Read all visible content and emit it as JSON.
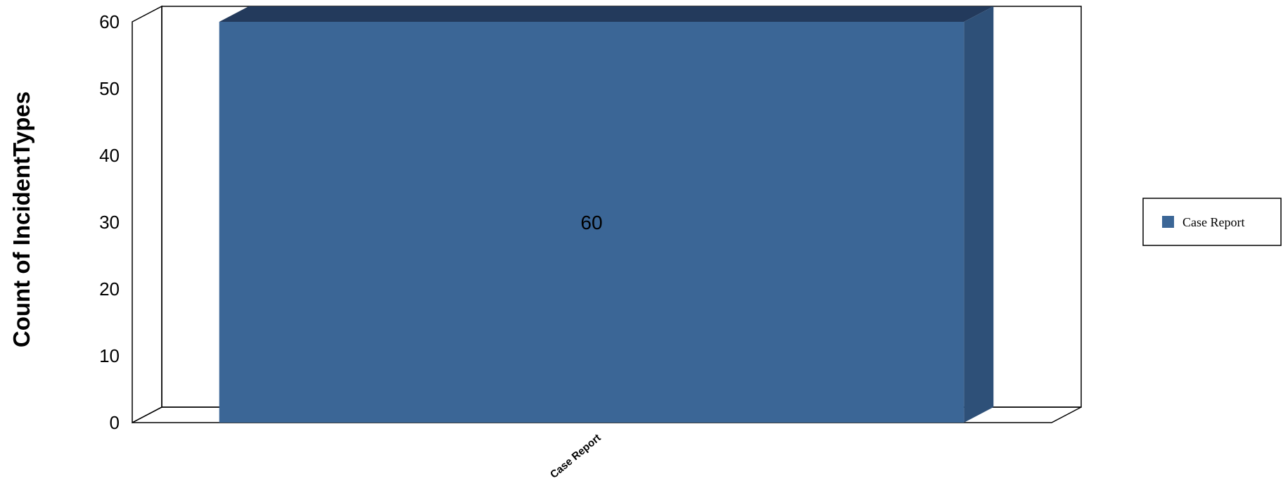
{
  "chart_data": {
    "type": "bar",
    "categories": [
      "Case Report"
    ],
    "series": [
      {
        "name": "Case Report",
        "values": [
          60
        ],
        "color": "#3B6696"
      }
    ],
    "data_labels": [
      "60"
    ],
    "ylabel": "Count of IncidentTypes",
    "xlabel": "",
    "ylim": [
      0,
      60
    ],
    "yticks": [
      0,
      10,
      20,
      30,
      40,
      50,
      60
    ],
    "grid": false,
    "legend_position": "right",
    "style": "3d-bar",
    "colors": {
      "bar_front": "#3B6696",
      "bar_top": "#233A5C",
      "bar_side": "#2E5078",
      "frame": "#000000",
      "background": "#FFFFFF"
    }
  }
}
